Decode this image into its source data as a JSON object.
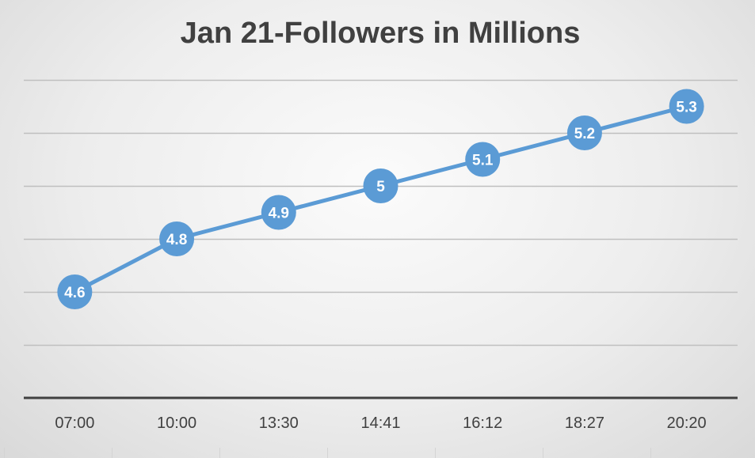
{
  "chart_data": {
    "type": "line",
    "title": "Jan 21-Followers in Millions",
    "xlabel": "",
    "ylabel": "",
    "categories": [
      "07:00",
      "10:00",
      "13:30",
      "14:41",
      "16:12",
      "18:27",
      "20:20"
    ],
    "series": [
      {
        "values": [
          4.6,
          4.8,
          4.9,
          5,
          5.1,
          5.2,
          5.3
        ],
        "color": "#5b9bd5"
      }
    ],
    "data_labels": [
      "4.6",
      "4.8",
      "4.9",
      "5",
      "5.1",
      "5.2",
      "5.3"
    ],
    "ylim": [
      4.2,
      5.4
    ],
    "y_gridlines": [
      4.4,
      4.6,
      4.8,
      5.0,
      5.2,
      5.4
    ],
    "y_tick_labels_visible": false,
    "grid": true,
    "legend": "none",
    "colors": {
      "line": "#5b9bd5",
      "gridline": "#bfbfbf",
      "axis": "#404040",
      "text": "#404040"
    }
  }
}
